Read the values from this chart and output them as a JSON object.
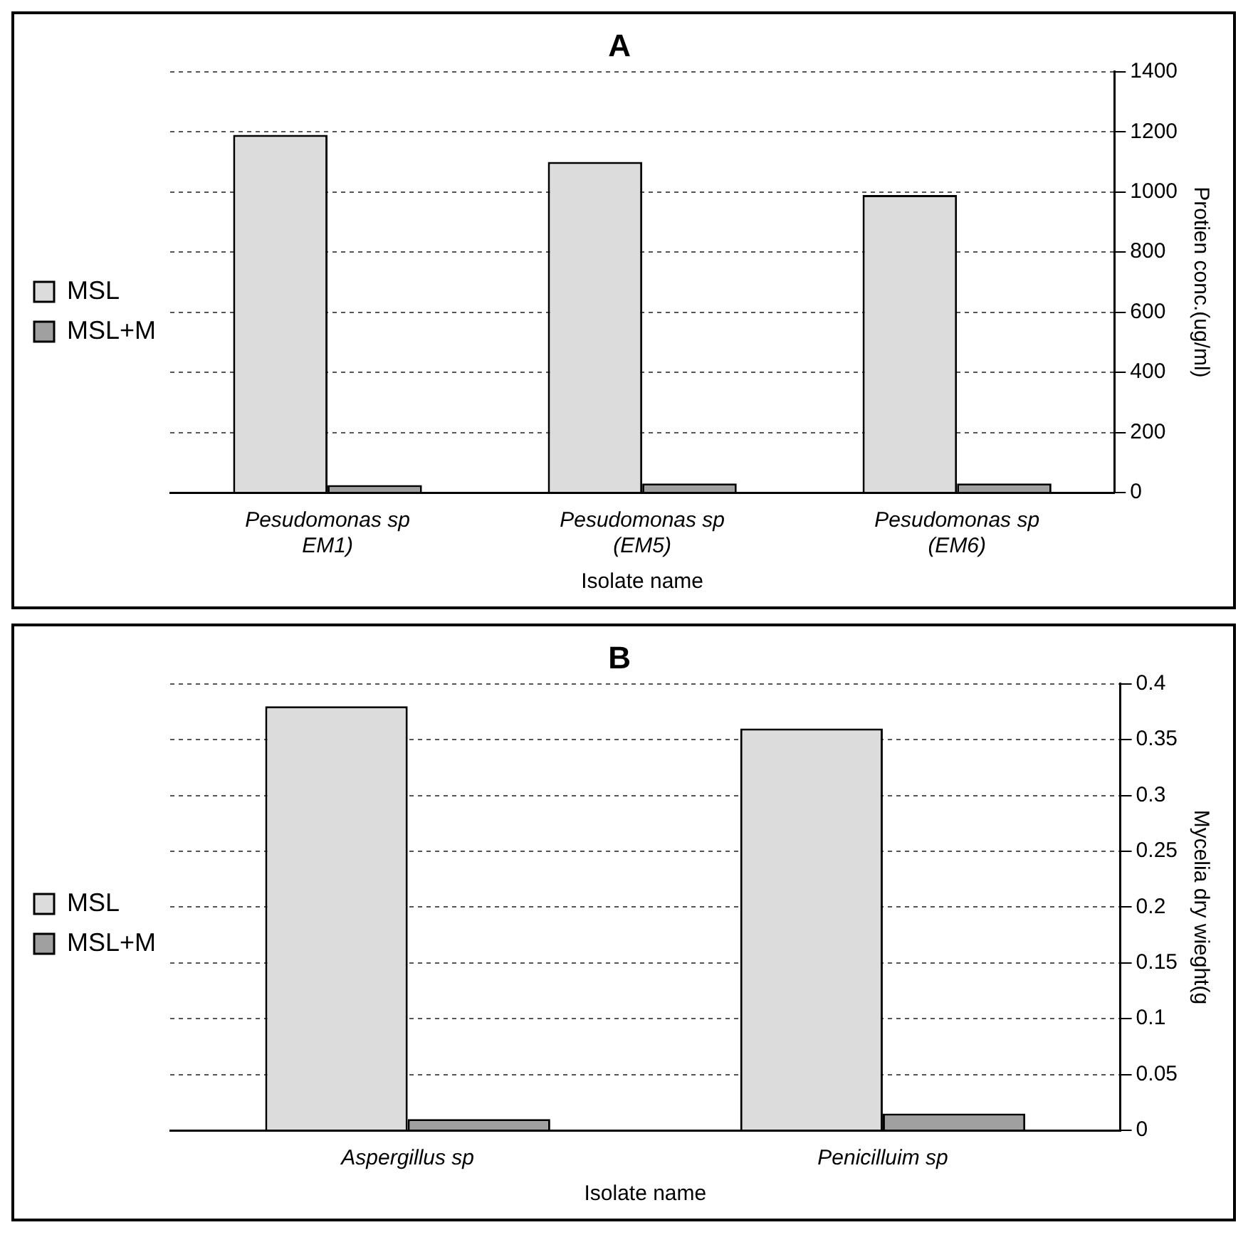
{
  "chart_data": [
    {
      "type": "bar",
      "title": "A",
      "xlabel": "Isolate name",
      "ylabel": "Protien conc.(ug/ml)",
      "categories": [
        "Pesudomonas sp EM1)",
        "Pesudomonas sp (EM5)",
        "Pesudomonas sp (EM6)"
      ],
      "series": [
        {
          "name": "MSL",
          "color": "#dcdcdc",
          "values": [
            1190,
            1100,
            990
          ]
        },
        {
          "name": "MSL+M",
          "color": "#a0a0a0",
          "values": [
            25,
            30,
            30
          ]
        }
      ],
      "ylim": [
        0,
        1400
      ],
      "yticks": [
        0,
        200,
        400,
        600,
        800,
        1000,
        1200,
        1400
      ],
      "grid": "y",
      "legend": "left"
    },
    {
      "type": "bar",
      "title": "B",
      "xlabel": "Isolate name",
      "ylabel": "Mycelia dry wieght(g",
      "categories": [
        "Aspergillus sp",
        "Penicilluim sp"
      ],
      "series": [
        {
          "name": "MSL",
          "color": "#dcdcdc",
          "values": [
            0.38,
            0.36
          ]
        },
        {
          "name": "MSL+M",
          "color": "#a0a0a0",
          "values": [
            0.01,
            0.015
          ]
        }
      ],
      "ylim": [
        0,
        0.4
      ],
      "yticks": [
        0,
        0.05,
        0.1,
        0.15,
        0.2,
        0.25,
        0.3,
        0.35,
        0.4
      ],
      "grid": "y",
      "legend": "left"
    }
  ]
}
